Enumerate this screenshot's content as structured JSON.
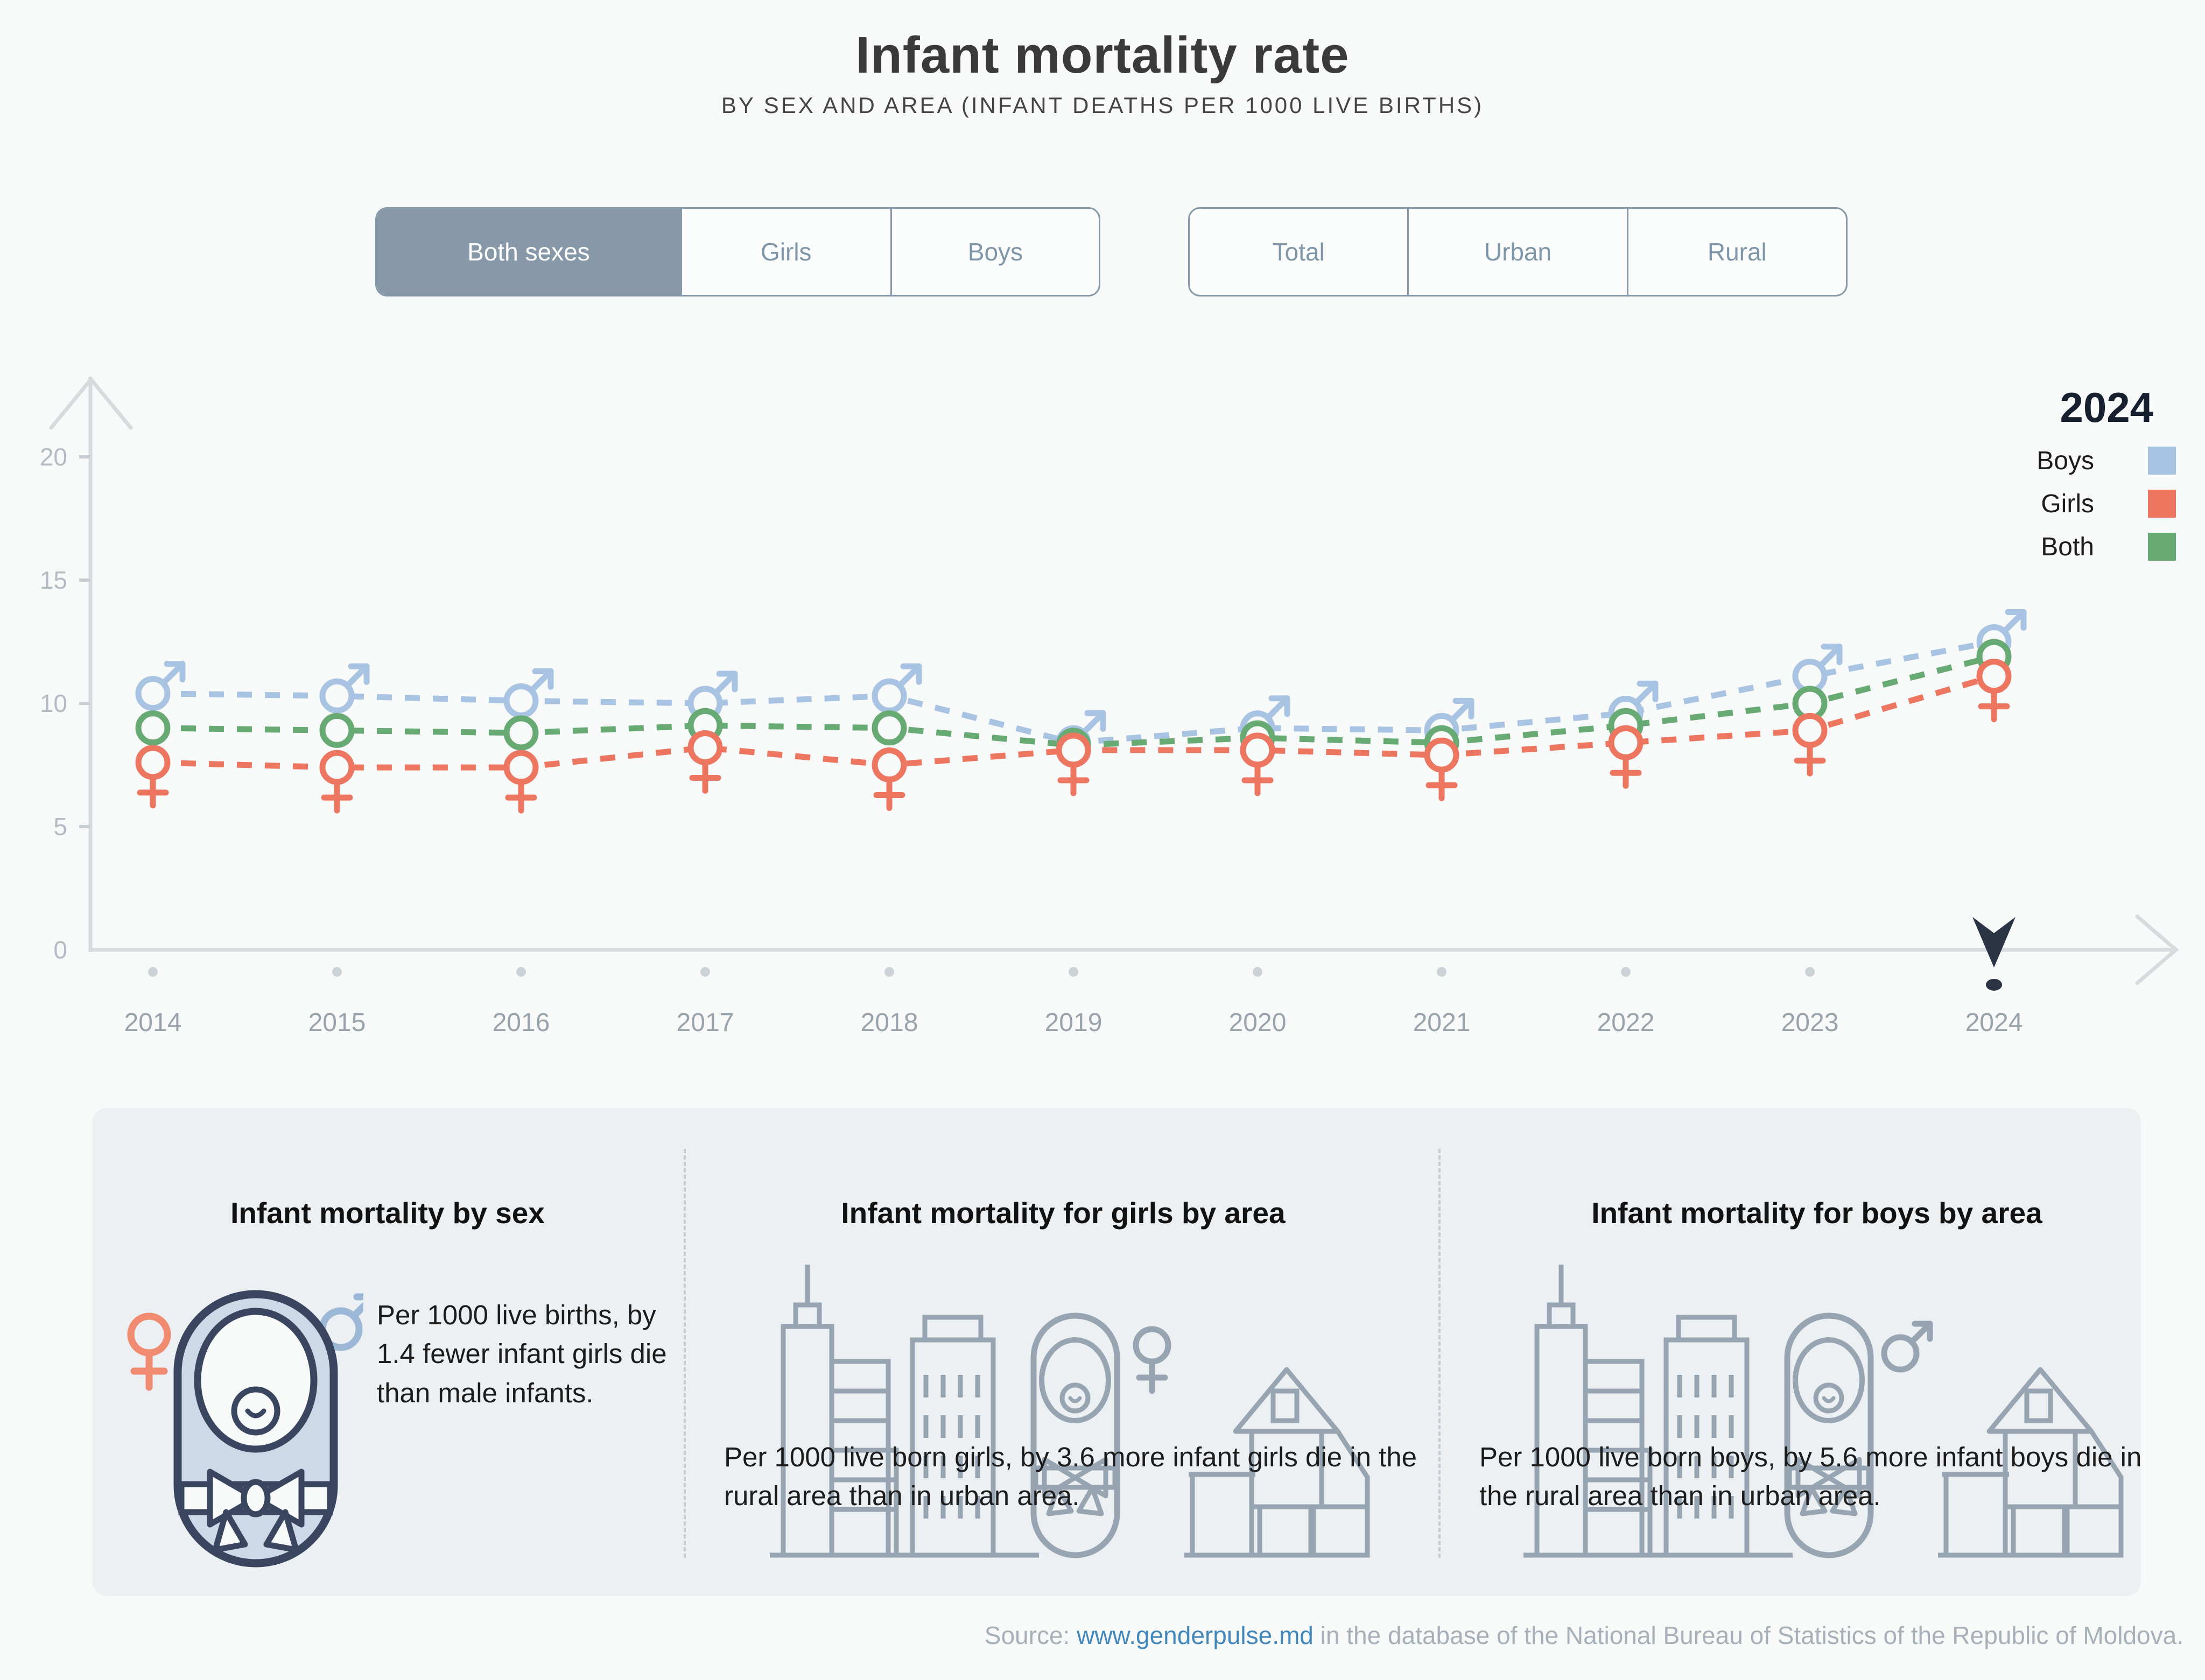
{
  "title": "Infant mortality rate",
  "subtitle": "BY SEX AND AREA (INFANT DEATHS PER 1000 LIVE BIRTHS)",
  "toggles": {
    "sex": {
      "options": [
        "Both sexes",
        "Girls",
        "Boys"
      ],
      "active": "Both sexes"
    },
    "area": {
      "options": [
        "Total",
        "Urban",
        "Rural"
      ],
      "active": null
    }
  },
  "legend": {
    "year": "2024",
    "items": [
      {
        "label": "Boys",
        "color": "#a8c4e2"
      },
      {
        "label": "Girls",
        "color": "#ec7660"
      },
      {
        "label": "Both",
        "color": "#68aa74"
      }
    ]
  },
  "chart_data": {
    "type": "line",
    "x": [
      2014,
      2015,
      2016,
      2017,
      2018,
      2019,
      2020,
      2021,
      2022,
      2023,
      2024
    ],
    "series": [
      {
        "name": "Boys",
        "marker": "male",
        "color": "#a8c4e2",
        "values": [
          10.4,
          10.3,
          10.1,
          10.0,
          10.3,
          8.4,
          9.0,
          8.9,
          9.6,
          11.1,
          12.5
        ]
      },
      {
        "name": "Both",
        "marker": "circle",
        "color": "#68aa74",
        "values": [
          9.0,
          8.9,
          8.8,
          9.1,
          9.0,
          8.3,
          8.6,
          8.4,
          9.1,
          10.0,
          11.9
        ]
      },
      {
        "name": "Girls",
        "marker": "female",
        "color": "#ec7660",
        "values": [
          7.6,
          7.4,
          7.4,
          8.2,
          7.5,
          8.1,
          8.1,
          7.9,
          8.4,
          8.9,
          11.1
        ]
      }
    ],
    "ylabel": "",
    "xlabel": "",
    "ylim": [
      0,
      20
    ],
    "yticks": [
      0,
      5,
      10,
      15,
      20
    ],
    "selected_x": 2024,
    "grid": false,
    "legend_position": "top-right",
    "axis_color": "#d6dbde",
    "tick_label_color": "#b3bcc3",
    "year_label_color": "#99a3ab",
    "timeline_dot_color": "#ccd3d8",
    "selected_marker_color": "#2b3444",
    "background": "#f8f9f9"
  },
  "cards": [
    {
      "heading": "Infant mortality by sex",
      "text": "Per 1000 live births, by 1.4 fewer infant girls die than male infants."
    },
    {
      "heading": "Infant mortality for girls by area",
      "text": "Per 1000 live born girls, by 3.6 more infant girls die in the rural area than in urban area."
    },
    {
      "heading": "Infant mortality for boys by area",
      "text": "Per 1000 live born boys, by 5.6 more infant boys die in the rural area than in urban area."
    }
  ],
  "source": {
    "prefix": "Source: ",
    "link_text": "www.genderpulse.md",
    "suffix": " in the database of the National Bureau of Statistics of the Republic of Moldova."
  }
}
